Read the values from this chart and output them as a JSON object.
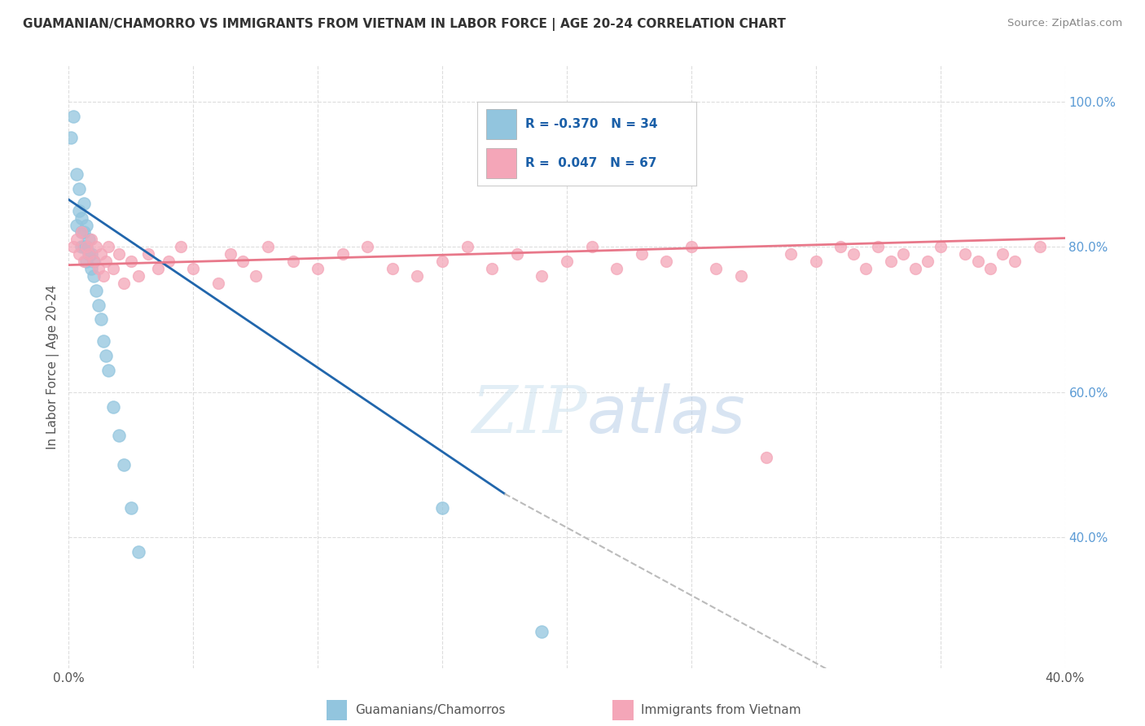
{
  "title": "GUAMANIAN/CHAMORRO VS IMMIGRANTS FROM VIETNAM IN LABOR FORCE | AGE 20-24 CORRELATION CHART",
  "source": "Source: ZipAtlas.com",
  "ylabel": "In Labor Force | Age 20-24",
  "xlim": [
    0.0,
    0.4
  ],
  "ylim": [
    0.22,
    1.05
  ],
  "blue_R": -0.37,
  "blue_N": 34,
  "pink_R": 0.047,
  "pink_N": 67,
  "blue_color": "#92c5de",
  "pink_color": "#f4a6b8",
  "blue_line_color": "#2166ac",
  "pink_line_color": "#e8788a",
  "dashed_line_color": "#bbbbbb",
  "legend_label_blue": "Guamanians/Chamorros",
  "legend_label_pink": "Immigrants from Vietnam",
  "blue_scatter_x": [
    0.001,
    0.002,
    0.003,
    0.003,
    0.004,
    0.004,
    0.005,
    0.005,
    0.005,
    0.006,
    0.006,
    0.006,
    0.007,
    0.007,
    0.007,
    0.008,
    0.008,
    0.009,
    0.009,
    0.01,
    0.01,
    0.011,
    0.012,
    0.013,
    0.014,
    0.015,
    0.016,
    0.018,
    0.02,
    0.022,
    0.025,
    0.028,
    0.15,
    0.19
  ],
  "blue_scatter_y": [
    0.95,
    0.98,
    0.83,
    0.9,
    0.85,
    0.88,
    0.84,
    0.82,
    0.8,
    0.86,
    0.82,
    0.8,
    0.8,
    0.78,
    0.83,
    0.79,
    0.81,
    0.77,
    0.79,
    0.78,
    0.76,
    0.74,
    0.72,
    0.7,
    0.67,
    0.65,
    0.63,
    0.58,
    0.54,
    0.5,
    0.44,
    0.38,
    0.44,
    0.27
  ],
  "pink_scatter_x": [
    0.002,
    0.003,
    0.004,
    0.005,
    0.006,
    0.007,
    0.008,
    0.009,
    0.01,
    0.011,
    0.012,
    0.013,
    0.014,
    0.015,
    0.016,
    0.018,
    0.02,
    0.022,
    0.025,
    0.028,
    0.032,
    0.036,
    0.04,
    0.045,
    0.05,
    0.06,
    0.065,
    0.07,
    0.075,
    0.08,
    0.09,
    0.1,
    0.11,
    0.12,
    0.13,
    0.14,
    0.15,
    0.16,
    0.17,
    0.18,
    0.19,
    0.2,
    0.21,
    0.22,
    0.23,
    0.24,
    0.25,
    0.26,
    0.27,
    0.28,
    0.29,
    0.3,
    0.31,
    0.315,
    0.32,
    0.325,
    0.33,
    0.335,
    0.34,
    0.345,
    0.35,
    0.36,
    0.365,
    0.37,
    0.375,
    0.38,
    0.39
  ],
  "pink_scatter_y": [
    0.8,
    0.81,
    0.79,
    0.82,
    0.78,
    0.8,
    0.79,
    0.81,
    0.78,
    0.8,
    0.77,
    0.79,
    0.76,
    0.78,
    0.8,
    0.77,
    0.79,
    0.75,
    0.78,
    0.76,
    0.79,
    0.77,
    0.78,
    0.8,
    0.77,
    0.75,
    0.79,
    0.78,
    0.76,
    0.8,
    0.78,
    0.77,
    0.79,
    0.8,
    0.77,
    0.76,
    0.78,
    0.8,
    0.77,
    0.79,
    0.76,
    0.78,
    0.8,
    0.77,
    0.79,
    0.78,
    0.8,
    0.77,
    0.76,
    0.51,
    0.79,
    0.78,
    0.8,
    0.79,
    0.77,
    0.8,
    0.78,
    0.79,
    0.77,
    0.78,
    0.8,
    0.79,
    0.78,
    0.77,
    0.79,
    0.78,
    0.8
  ],
  "background_color": "#ffffff",
  "grid_color": "#dddddd",
  "right_tick_color": "#5b9bd5"
}
